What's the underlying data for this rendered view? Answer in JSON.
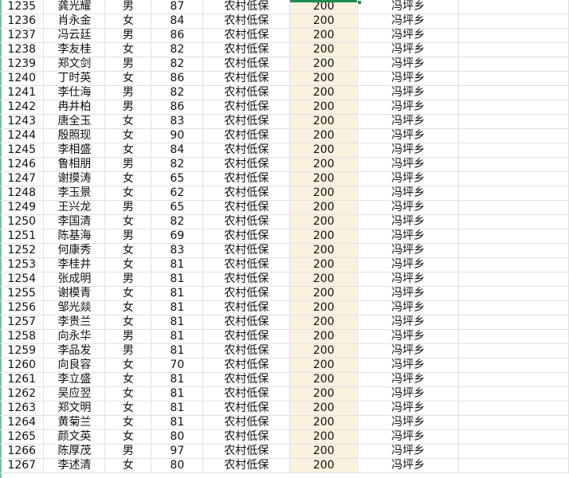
{
  "colors": {
    "accent": "#1e8c4e",
    "highlight_column": "#faf1e0",
    "grid": "#e1e1e1"
  },
  "rows": [
    [
      "1235",
      "龚光耀",
      "男",
      "87",
      "农村低保",
      "200",
      "冯坪乡"
    ],
    [
      "1236",
      "肖永金",
      "女",
      "84",
      "农村低保",
      "200",
      "冯坪乡"
    ],
    [
      "1237",
      "冯云廷",
      "男",
      "86",
      "农村低保",
      "200",
      "冯坪乡"
    ],
    [
      "1238",
      "李友桂",
      "女",
      "82",
      "农村低保",
      "200",
      "冯坪乡"
    ],
    [
      "1239",
      "郑文剑",
      "男",
      "82",
      "农村低保",
      "200",
      "冯坪乡"
    ],
    [
      "1240",
      "丁时英",
      "女",
      "86",
      "农村低保",
      "200",
      "冯坪乡"
    ],
    [
      "1241",
      "李仕海",
      "男",
      "82",
      "农村低保",
      "200",
      "冯坪乡"
    ],
    [
      "1242",
      "冉井柏",
      "男",
      "86",
      "农村低保",
      "200",
      "冯坪乡"
    ],
    [
      "1243",
      "唐全玉",
      "女",
      "83",
      "农村低保",
      "200",
      "冯坪乡"
    ],
    [
      "1244",
      "殷照现",
      "女",
      "90",
      "农村低保",
      "200",
      "冯坪乡"
    ],
    [
      "1245",
      "李相盛",
      "女",
      "84",
      "农村低保",
      "200",
      "冯坪乡"
    ],
    [
      "1246",
      "鲁相朋",
      "男",
      "82",
      "农村低保",
      "200",
      "冯坪乡"
    ],
    [
      "1247",
      "谢摸涛",
      "女",
      "65",
      "农村低保",
      "200",
      "冯坪乡"
    ],
    [
      "1248",
      "李玉景",
      "女",
      "62",
      "农村低保",
      "200",
      "冯坪乡"
    ],
    [
      "1249",
      "王兴龙",
      "男",
      "65",
      "农村低保",
      "200",
      "冯坪乡"
    ],
    [
      "1250",
      "李国清",
      "女",
      "82",
      "农村低保",
      "200",
      "冯坪乡"
    ],
    [
      "1251",
      "陈基海",
      "男",
      "69",
      "农村低保",
      "200",
      "冯坪乡"
    ],
    [
      "1252",
      "何康秀",
      "女",
      "83",
      "农村低保",
      "200",
      "冯坪乡"
    ],
    [
      "1253",
      "李桂井",
      "女",
      "81",
      "农村低保",
      "200",
      "冯坪乡"
    ],
    [
      "1254",
      "张成明",
      "男",
      "81",
      "农村低保",
      "200",
      "冯坪乡"
    ],
    [
      "1255",
      "谢模青",
      "女",
      "81",
      "农村低保",
      "200",
      "冯坪乡"
    ],
    [
      "1256",
      "邹光燚",
      "女",
      "81",
      "农村低保",
      "200",
      "冯坪乡"
    ],
    [
      "1257",
      "李贵兰",
      "女",
      "81",
      "农村低保",
      "200",
      "冯坪乡"
    ],
    [
      "1258",
      "向永华",
      "男",
      "81",
      "农村低保",
      "200",
      "冯坪乡"
    ],
    [
      "1259",
      "李品发",
      "男",
      "81",
      "农村低保",
      "200",
      "冯坪乡"
    ],
    [
      "1260",
      "向良容",
      "女",
      "70",
      "农村低保",
      "200",
      "冯坪乡"
    ],
    [
      "1261",
      "李立盛",
      "女",
      "81",
      "农村低保",
      "200",
      "冯坪乡"
    ],
    [
      "1262",
      "吴应翌",
      "女",
      "81",
      "农村低保",
      "200",
      "冯坪乡"
    ],
    [
      "1263",
      "郑文明",
      "女",
      "81",
      "农村低保",
      "200",
      "冯坪乡"
    ],
    [
      "1264",
      "黄菊兰",
      "女",
      "81",
      "农村低保",
      "200",
      "冯坪乡"
    ],
    [
      "1265",
      "颜文英",
      "女",
      "80",
      "农村低保",
      "200",
      "冯坪乡"
    ],
    [
      "1266",
      "陈厚茂",
      "男",
      "97",
      "农村低保",
      "200",
      "冯坪乡"
    ],
    [
      "1267",
      "李述清",
      "女",
      "80",
      "农村低保",
      "200",
      "冯坪乡"
    ]
  ]
}
